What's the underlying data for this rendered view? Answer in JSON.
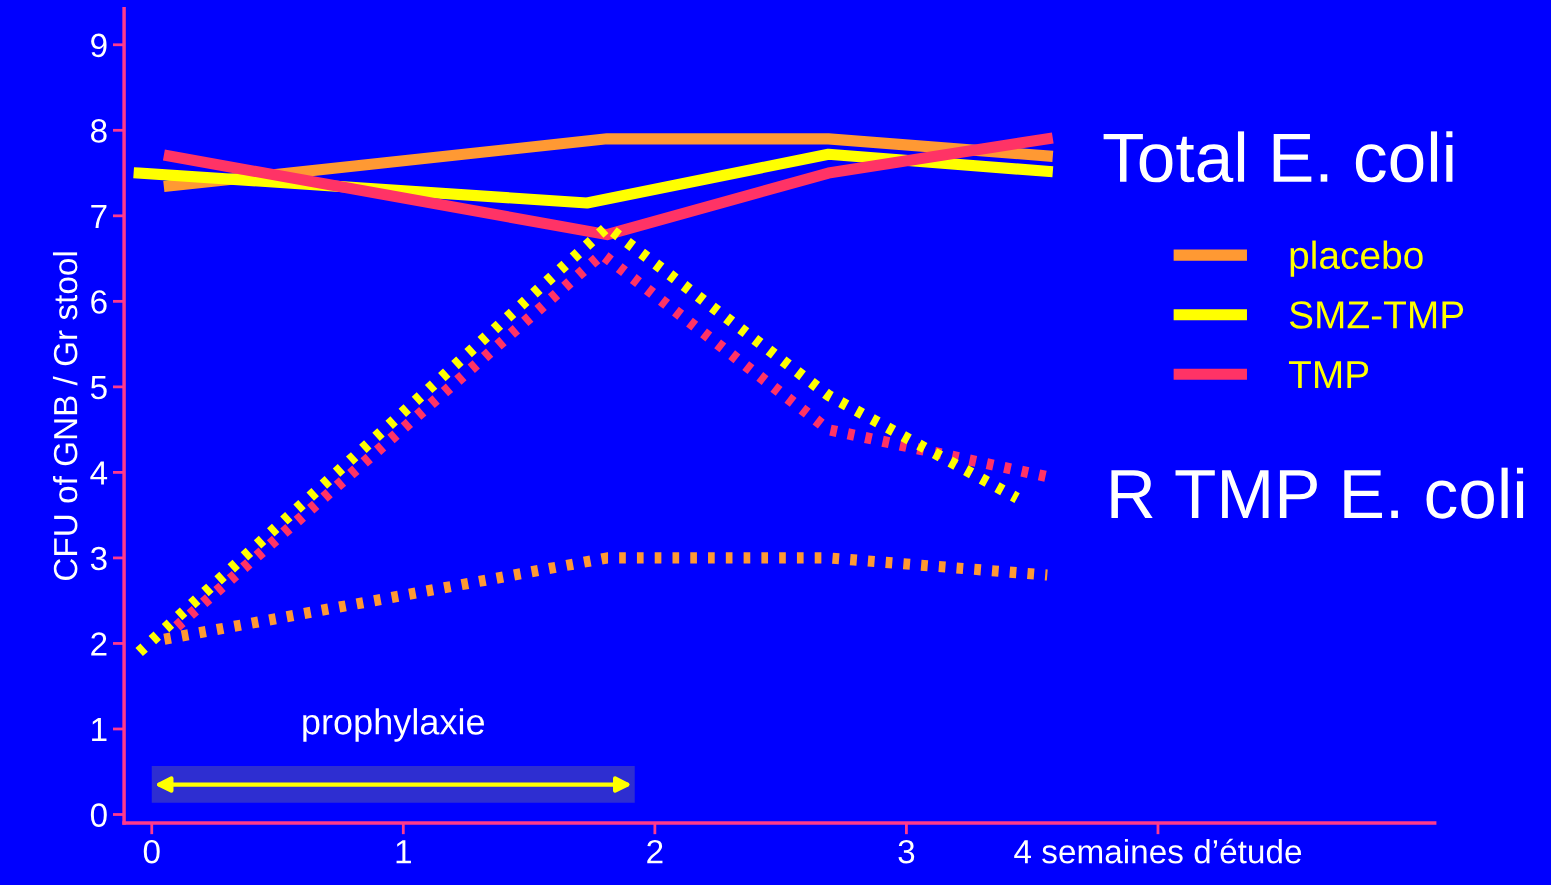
{
  "chart_data": {
    "type": "line",
    "ylabel": "CFU of GNB / Gr stool",
    "xlim": [
      -0.11,
      5.1
    ],
    "xticks": [
      0,
      1,
      2,
      3,
      {
        "value": 4,
        "label": "4 semaines d’étude"
      }
    ],
    "ylim": [
      -0.1,
      9.42
    ],
    "yticks": [
      0,
      1,
      2,
      3,
      4,
      5,
      6,
      7,
      8,
      9
    ],
    "series": [
      {
        "name": "placebo",
        "color": "#ff9933",
        "line_style": "solid",
        "x": [
          0.07,
          1.81,
          2.69,
          3.56
        ],
        "values": [
          7.35,
          7.9,
          7.9,
          7.7
        ]
      },
      {
        "name": "SMZ-TMP",
        "color": "#ffff00",
        "line_style": "solid",
        "x": [
          -0.05,
          1.73,
          2.69,
          3.56
        ],
        "values": [
          7.5,
          7.15,
          7.72,
          7.52
        ]
      },
      {
        "name": "TMP",
        "color": "#ff3366",
        "line_style": "solid",
        "x": [
          0.07,
          1.81,
          2.69,
          3.56
        ],
        "values": [
          7.7,
          6.78,
          7.5,
          7.9
        ]
      },
      {
        "color": "#ff9933",
        "line_style": "dotted",
        "x": [
          0.05,
          1.81,
          2.69,
          3.56
        ],
        "values": [
          2.05,
          3.0,
          3.0,
          2.8
        ]
      },
      {
        "color": "#ff3366",
        "line_style": "dotted",
        "x": [
          0.1,
          1.79,
          2.69,
          3.56
        ],
        "values": [
          2.2,
          6.55,
          4.5,
          3.95
        ]
      },
      {
        "color": "#ffff00",
        "line_style": "dotted",
        "x": [
          -0.05,
          1.81,
          2.69,
          3.44
        ],
        "values": [
          1.9,
          6.87,
          4.9,
          3.7
        ]
      }
    ],
    "annotations": [
      "Total E. coli",
      "R TMP E. coli"
    ],
    "bands": [
      {
        "axis": "x",
        "from": 0,
        "to": 1.92,
        "label": "prophylaxie",
        "color": "#ffff00"
      }
    ],
    "legend": "right",
    "grid": false
  }
}
